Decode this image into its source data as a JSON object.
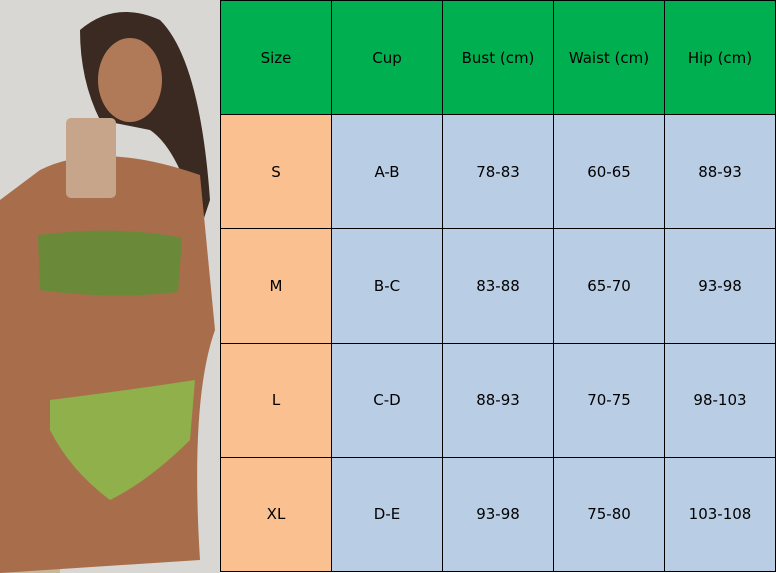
{
  "colors": {
    "header": "#00b050",
    "size_column": "#fac090",
    "data_cells": "#b9cde5"
  },
  "table": {
    "headers": [
      "Size",
      "Cup",
      "Bust (cm)",
      "Waist (cm)",
      "Hip (cm)"
    ],
    "rows": [
      [
        "S",
        "A-B",
        "78-83",
        "60-65",
        "88-93"
      ],
      [
        "M",
        "B-C",
        "83-88",
        "65-70",
        "93-98"
      ],
      [
        "L",
        "C-D",
        "88-93",
        "70-75",
        "98-103"
      ],
      [
        "XL",
        "D-E",
        "93-98",
        "75-80",
        "103-108"
      ]
    ]
  }
}
